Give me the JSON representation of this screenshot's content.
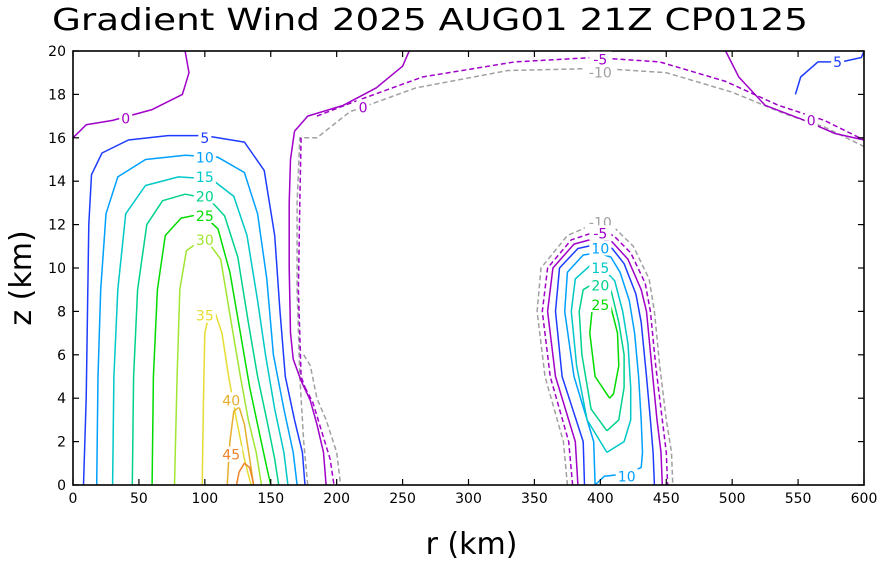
{
  "chart_data": {
    "type": "contour",
    "title": "Gradient Wind 2025 AUG01 21Z   CP0125",
    "xlabel": "r (km)",
    "ylabel": "z (km)",
    "xlim": [
      0,
      600
    ],
    "ylim": [
      0,
      20
    ],
    "xticks": [
      "0",
      "50",
      "100",
      "150",
      "200",
      "250",
      "300",
      "350",
      "400",
      "450",
      "500",
      "550",
      "600"
    ],
    "yticks": [
      "0",
      "2",
      "4",
      "6",
      "8",
      "10",
      "12",
      "14",
      "16",
      "18",
      "20"
    ],
    "levels": [
      -10,
      -5,
      0,
      5,
      10,
      15,
      20,
      25,
      30,
      35,
      40,
      45
    ],
    "level_colors": {
      "-10": "#a0a0a0",
      "-5": "#a000c8",
      "0": "#a000c8",
      "5": "#1e3cff",
      "10": "#00a0ff",
      "15": "#00c8c8",
      "20": "#00d28c",
      "25": "#00dc00",
      "30": "#a0e632",
      "35": "#e6dc32",
      "40": "#e6af2d",
      "45": "#f08228"
    },
    "contour_labels": [
      {
        "text": "0",
        "r": 40,
        "z": 16.9,
        "level": 0
      },
      {
        "text": "5",
        "r": 100,
        "z": 16.0,
        "level": 5
      },
      {
        "text": "10",
        "r": 100,
        "z": 15.1,
        "level": 10
      },
      {
        "text": "15",
        "r": 100,
        "z": 14.2,
        "level": 15
      },
      {
        "text": "20",
        "r": 100,
        "z": 13.3,
        "level": 20
      },
      {
        "text": "25",
        "r": 100,
        "z": 12.4,
        "level": 25
      },
      {
        "text": "30",
        "r": 100,
        "z": 11.3,
        "level": 30
      },
      {
        "text": "35",
        "r": 100,
        "z": 7.8,
        "level": 35
      },
      {
        "text": "40",
        "r": 120,
        "z": 3.9,
        "level": 40
      },
      {
        "text": "45",
        "r": 120,
        "z": 1.4,
        "level": 45
      },
      {
        "text": "0",
        "r": 220,
        "z": 17.4,
        "level": 0
      },
      {
        "text": "-5",
        "r": 400,
        "z": 19.6,
        "level": -5
      },
      {
        "text": "-10",
        "r": 400,
        "z": 19.0,
        "level": -10
      },
      {
        "text": "5",
        "r": 580,
        "z": 19.5,
        "level": 5
      },
      {
        "text": "0",
        "r": 560,
        "z": 16.8,
        "level": 0
      },
      {
        "text": "-10",
        "r": 400,
        "z": 12.1,
        "level": -10
      },
      {
        "text": "-5",
        "r": 400,
        "z": 11.6,
        "level": -5
      },
      {
        "text": "10",
        "r": 400,
        "z": 10.9,
        "level": 10
      },
      {
        "text": "15",
        "r": 400,
        "z": 10.0,
        "level": 15
      },
      {
        "text": "20",
        "r": 400,
        "z": 9.2,
        "level": 20
      },
      {
        "text": "25",
        "r": 400,
        "z": 8.3,
        "level": 25
      },
      {
        "text": "10",
        "r": 420,
        "z": 0.4,
        "level": 10
      }
    ]
  }
}
